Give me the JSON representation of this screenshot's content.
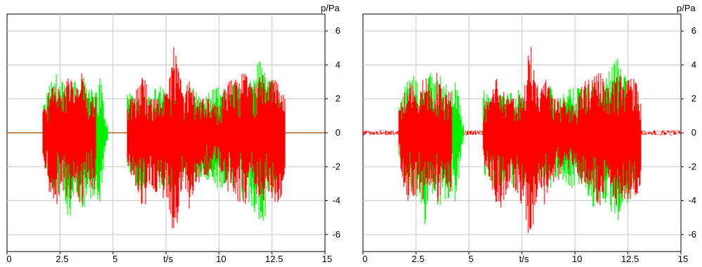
{
  "chart_data": [
    {
      "type": "line",
      "xlabel": "t/s",
      "ylabel": "p/Pa",
      "xlim": [
        0,
        15
      ],
      "ylim": [
        -7,
        7
      ],
      "xticks": [
        0,
        2.5,
        5,
        7.5,
        10,
        12.5,
        15
      ],
      "yticks": [
        -6,
        -4,
        -2,
        0,
        2,
        4,
        6
      ],
      "x_tick_labels": [
        "0",
        "2.5",
        "5",
        "t/s",
        "10",
        "12.5",
        "15"
      ],
      "y_tick_labels": [
        "-6",
        "-4",
        "-2",
        "0",
        "2",
        "4",
        "6"
      ],
      "grid": true,
      "colors": {
        "baseline": "#b06010",
        "green": "#00ee00",
        "red": "#ff0000"
      },
      "baseline_series": {
        "x": [
          0,
          15
        ],
        "y": [
          0,
          0
        ]
      },
      "series": [
        {
          "color": "green",
          "x": [
            1.7,
            2.0,
            2.3,
            2.6,
            2.9,
            3.2,
            3.5,
            3.8,
            4.1,
            4.4,
            4.7,
            5.7,
            6.0,
            6.4,
            6.8,
            7.2,
            7.6,
            8.0,
            8.4,
            8.8,
            9.2,
            9.6,
            10.0,
            10.4,
            10.8,
            11.2,
            11.6,
            12.0,
            12.4,
            12.8,
            13.1
          ],
          "env_pos": [
            1.5,
            2.8,
            3.5,
            3.0,
            2.5,
            3.6,
            3.2,
            3.5,
            2.0,
            3.3,
            0.5,
            2.5,
            2.0,
            2.3,
            2.2,
            3.0,
            2.0,
            2.5,
            1.5,
            2.8,
            1.8,
            2.5,
            2.7,
            2.5,
            3.0,
            2.3,
            3.6,
            4.4,
            3.2,
            2.5,
            1.0
          ],
          "env_neg": [
            -1.5,
            -3.0,
            -4.0,
            -3.8,
            -5.6,
            -3.2,
            -4.6,
            -4.2,
            -3.8,
            -4.3,
            -0.5,
            -2.5,
            -3.0,
            -3.5,
            -2.5,
            -3.5,
            -3.0,
            -4.5,
            -2.5,
            -3.5,
            -2.5,
            -3.0,
            -3.4,
            -3.0,
            -4.5,
            -4.0,
            -4.5,
            -5.6,
            -4.5,
            -3.0,
            -1.0
          ]
        },
        {
          "color": "red",
          "x": [
            1.7,
            2.0,
            2.3,
            2.6,
            2.9,
            3.2,
            3.5,
            3.8,
            4.1,
            5.7,
            6.0,
            6.4,
            6.8,
            7.2,
            7.6,
            7.9,
            8.3,
            8.6,
            9.0,
            9.5,
            10.0,
            10.4,
            10.8,
            11.2,
            11.6,
            12.0,
            12.4,
            12.8,
            13.1
          ],
          "env_pos": [
            1.5,
            2.5,
            3.0,
            2.0,
            3.5,
            2.5,
            3.6,
            2.0,
            2.5,
            1.8,
            2.2,
            3.5,
            2.0,
            2.0,
            2.5,
            5.7,
            2.2,
            3.2,
            2.0,
            2.0,
            1.5,
            3.0,
            3.2,
            3.6,
            2.5,
            3.5,
            3.0,
            3.3,
            2.0
          ],
          "env_neg": [
            -1.5,
            -3.8,
            -4.6,
            -3.5,
            -4.6,
            -3.0,
            -4.6,
            -3.0,
            -3.5,
            -2.0,
            -3.0,
            -4.8,
            -3.5,
            -3.5,
            -4.5,
            -6.8,
            -3.0,
            -4.5,
            -3.0,
            -2.5,
            -2.0,
            -3.5,
            -4.0,
            -4.5,
            -3.0,
            -4.5,
            -3.8,
            -4.5,
            -3.5
          ]
        }
      ]
    },
    {
      "type": "line",
      "xlabel": "t/s",
      "ylabel": "p/Pa",
      "xlim": [
        0,
        15
      ],
      "ylim": [
        -7,
        7
      ],
      "xticks": [
        0,
        2.5,
        5,
        7.5,
        10,
        12.5,
        15
      ],
      "yticks": [
        -6,
        -4,
        -2,
        0,
        2,
        4,
        6
      ],
      "x_tick_labels": [
        "0",
        "2.5",
        "5",
        "t/s",
        "10",
        "12.5",
        "15"
      ],
      "y_tick_labels": [
        "-6",
        "-4",
        "-2",
        "0",
        "2",
        "4",
        "6"
      ],
      "grid": true,
      "colors": {
        "green": "#00ee00",
        "red": "#ff0000"
      },
      "noise_floor": 0.15,
      "series": [
        {
          "color": "green",
          "x": [
            1.7,
            2.0,
            2.3,
            2.6,
            2.9,
            3.2,
            3.5,
            3.8,
            4.1,
            4.4,
            4.7,
            5.7,
            6.0,
            6.4,
            6.8,
            7.2,
            7.6,
            8.0,
            8.4,
            8.8,
            9.2,
            9.6,
            10.0,
            10.4,
            10.8,
            11.2,
            11.6,
            12.0,
            12.4,
            12.8,
            13.1
          ],
          "env_pos": [
            1.5,
            2.8,
            3.5,
            3.0,
            2.5,
            3.6,
            3.2,
            3.5,
            2.0,
            3.3,
            0.5,
            2.5,
            2.0,
            2.3,
            2.2,
            3.0,
            2.0,
            2.5,
            1.5,
            2.8,
            1.8,
            2.5,
            2.7,
            2.5,
            3.0,
            2.3,
            3.6,
            4.4,
            3.2,
            2.5,
            1.0
          ],
          "env_neg": [
            -1.5,
            -3.0,
            -4.0,
            -3.8,
            -5.6,
            -3.2,
            -4.6,
            -4.2,
            -3.8,
            -4.3,
            -0.5,
            -2.5,
            -3.0,
            -3.5,
            -2.5,
            -3.5,
            -3.0,
            -4.5,
            -2.5,
            -3.5,
            -2.5,
            -3.0,
            -3.4,
            -3.0,
            -4.5,
            -4.0,
            -4.5,
            -5.6,
            -4.5,
            -3.0,
            -1.0
          ]
        },
        {
          "color": "red",
          "x": [
            1.7,
            2.0,
            2.3,
            2.6,
            2.9,
            3.2,
            3.5,
            3.8,
            4.1,
            5.7,
            6.0,
            6.4,
            6.8,
            7.2,
            7.6,
            7.9,
            8.3,
            8.6,
            9.0,
            9.5,
            10.0,
            10.4,
            10.8,
            11.2,
            11.6,
            12.0,
            12.4,
            12.8,
            13.1
          ],
          "env_pos": [
            1.5,
            2.5,
            3.0,
            2.0,
            3.5,
            2.5,
            3.6,
            2.0,
            2.5,
            1.8,
            2.2,
            3.5,
            2.0,
            2.0,
            2.5,
            5.6,
            2.2,
            3.2,
            2.0,
            2.0,
            1.5,
            3.0,
            3.2,
            3.6,
            2.5,
            3.5,
            3.0,
            3.3,
            2.0
          ],
          "env_neg": [
            -1.5,
            -3.8,
            -4.6,
            -3.5,
            -4.6,
            -3.0,
            -4.6,
            -3.0,
            -3.5,
            -2.0,
            -3.0,
            -4.8,
            -3.5,
            -3.5,
            -4.5,
            -6.8,
            -3.0,
            -4.5,
            -3.0,
            -2.5,
            -2.0,
            -3.5,
            -4.0,
            -4.5,
            -3.0,
            -4.5,
            -3.8,
            -4.5,
            -3.5
          ]
        }
      ]
    }
  ]
}
